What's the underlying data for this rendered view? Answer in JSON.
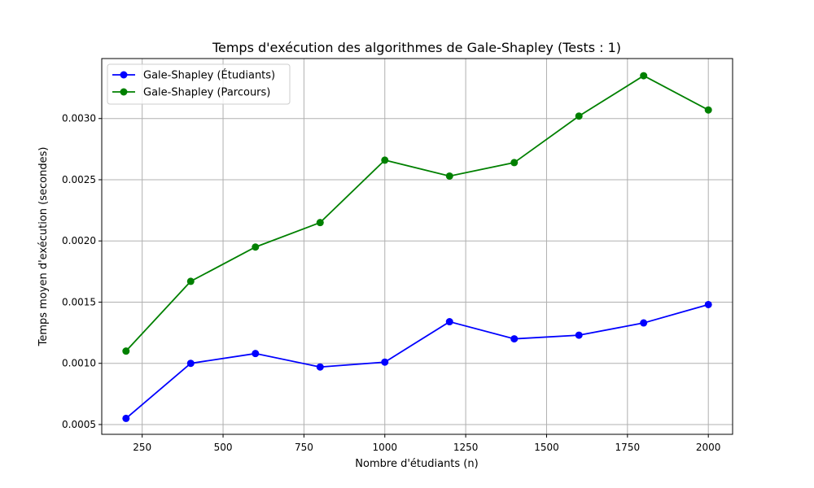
{
  "chart_data": {
    "type": "line",
    "title": "Temps d'exécution des algorithmes de Gale-Shapley (Tests : 1)",
    "xlabel": "Nombre d'étudiants (n)",
    "ylabel": "Temps moyen d'exécution (secondes)",
    "xlim": [
      125,
      2075
    ],
    "ylim": [
      0.00042,
      0.00349
    ],
    "xticks": [
      250,
      500,
      750,
      1000,
      1250,
      1500,
      1750,
      2000
    ],
    "xtick_labels": [
      "250",
      "500",
      "750",
      "1000",
      "1250",
      "1500",
      "1750",
      "2000"
    ],
    "yticks": [
      0.0005,
      0.001,
      0.0015,
      0.002,
      0.0025,
      0.003
    ],
    "ytick_labels": [
      "0.0005",
      "0.0010",
      "0.0015",
      "0.0020",
      "0.0025",
      "0.0030"
    ],
    "grid": true,
    "legend_position": "top-left",
    "x": [
      200,
      400,
      600,
      800,
      1000,
      1200,
      1400,
      1600,
      1800,
      2000
    ],
    "series": [
      {
        "name": "Gale-Shapley (Étudiants)",
        "color": "#0000ff",
        "values": [
          0.00055,
          0.001,
          0.00108,
          0.00097,
          0.00101,
          0.00134,
          0.0012,
          0.00123,
          0.00133,
          0.00148
        ]
      },
      {
        "name": "Gale-Shapley (Parcours)",
        "color": "#008000",
        "values": [
          0.0011,
          0.00167,
          0.00195,
          0.00215,
          0.00266,
          0.00253,
          0.00264,
          0.00302,
          0.00335,
          0.00307
        ]
      }
    ]
  }
}
